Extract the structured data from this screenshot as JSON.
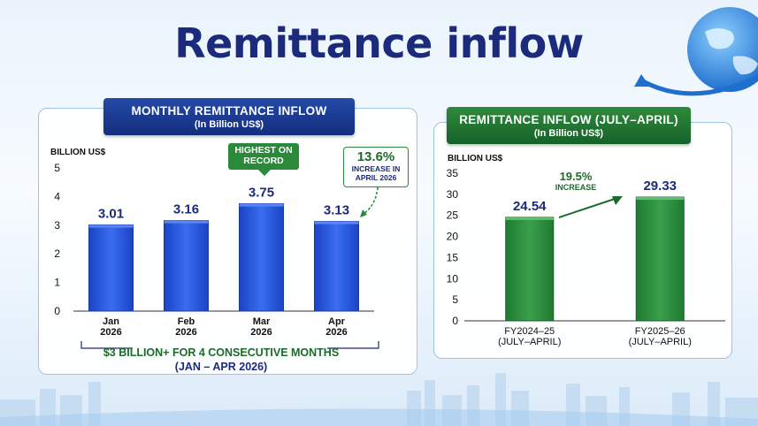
{
  "title": "Remittance inflow",
  "left_panel": {
    "header": "MONTHLY REMITTANCE INFLOW",
    "subheader": "(In Billion US$)",
    "callout_record": "HIGHEST ON RECORD",
    "callout_increase_pct": "13.6%",
    "callout_increase_text": "INCREASE IN APRIL 2026",
    "footer_line1": "$3 BILLION+ FOR 4 CONSECUTIVE MONTHS",
    "footer_line2": "(JAN – APR 2026)"
  },
  "right_panel": {
    "header": "REMITTANCE INFLOW (JULY–APRIL)",
    "subheader": "(In Billion US$)",
    "increase_pct": "19.5%",
    "increase_text": "INCREASE"
  },
  "colors": {
    "blue": "#1f4fd6",
    "green": "#2a8a3a",
    "navy": "#1b2a7a"
  },
  "chart_data": [
    {
      "type": "bar",
      "ylabel": "BILLION US$",
      "ylim": [
        0,
        5
      ],
      "yticks": [
        0,
        1,
        2,
        3,
        4,
        5
      ],
      "categories": [
        "Jan 2026",
        "Feb 2026",
        "Mar 2026",
        "Apr 2026"
      ],
      "category_lines": [
        [
          "Jan",
          "2026"
        ],
        [
          "Feb",
          "2026"
        ],
        [
          "Mar",
          "2026"
        ],
        [
          "Apr",
          "2026"
        ]
      ],
      "values": [
        3.01,
        3.16,
        3.75,
        3.13
      ],
      "value_labels": [
        "3.01",
        "3.16",
        "3.75",
        "3.13"
      ]
    },
    {
      "type": "bar",
      "ylabel": "BILLION US$",
      "ylim": [
        0,
        35
      ],
      "yticks": [
        0,
        5,
        10,
        15,
        20,
        25,
        30,
        35
      ],
      "categories": [
        "FY2024–25 (JULY–APRIL)",
        "FY2025–26 (JULY–APRIL)"
      ],
      "category_lines": [
        [
          "FY2024–25",
          "(JULY–APRIL)"
        ],
        [
          "FY2025–26",
          "(JULY–APRIL)"
        ]
      ],
      "values": [
        24.54,
        29.33
      ],
      "value_labels": [
        "24.54",
        "29.33"
      ]
    }
  ]
}
